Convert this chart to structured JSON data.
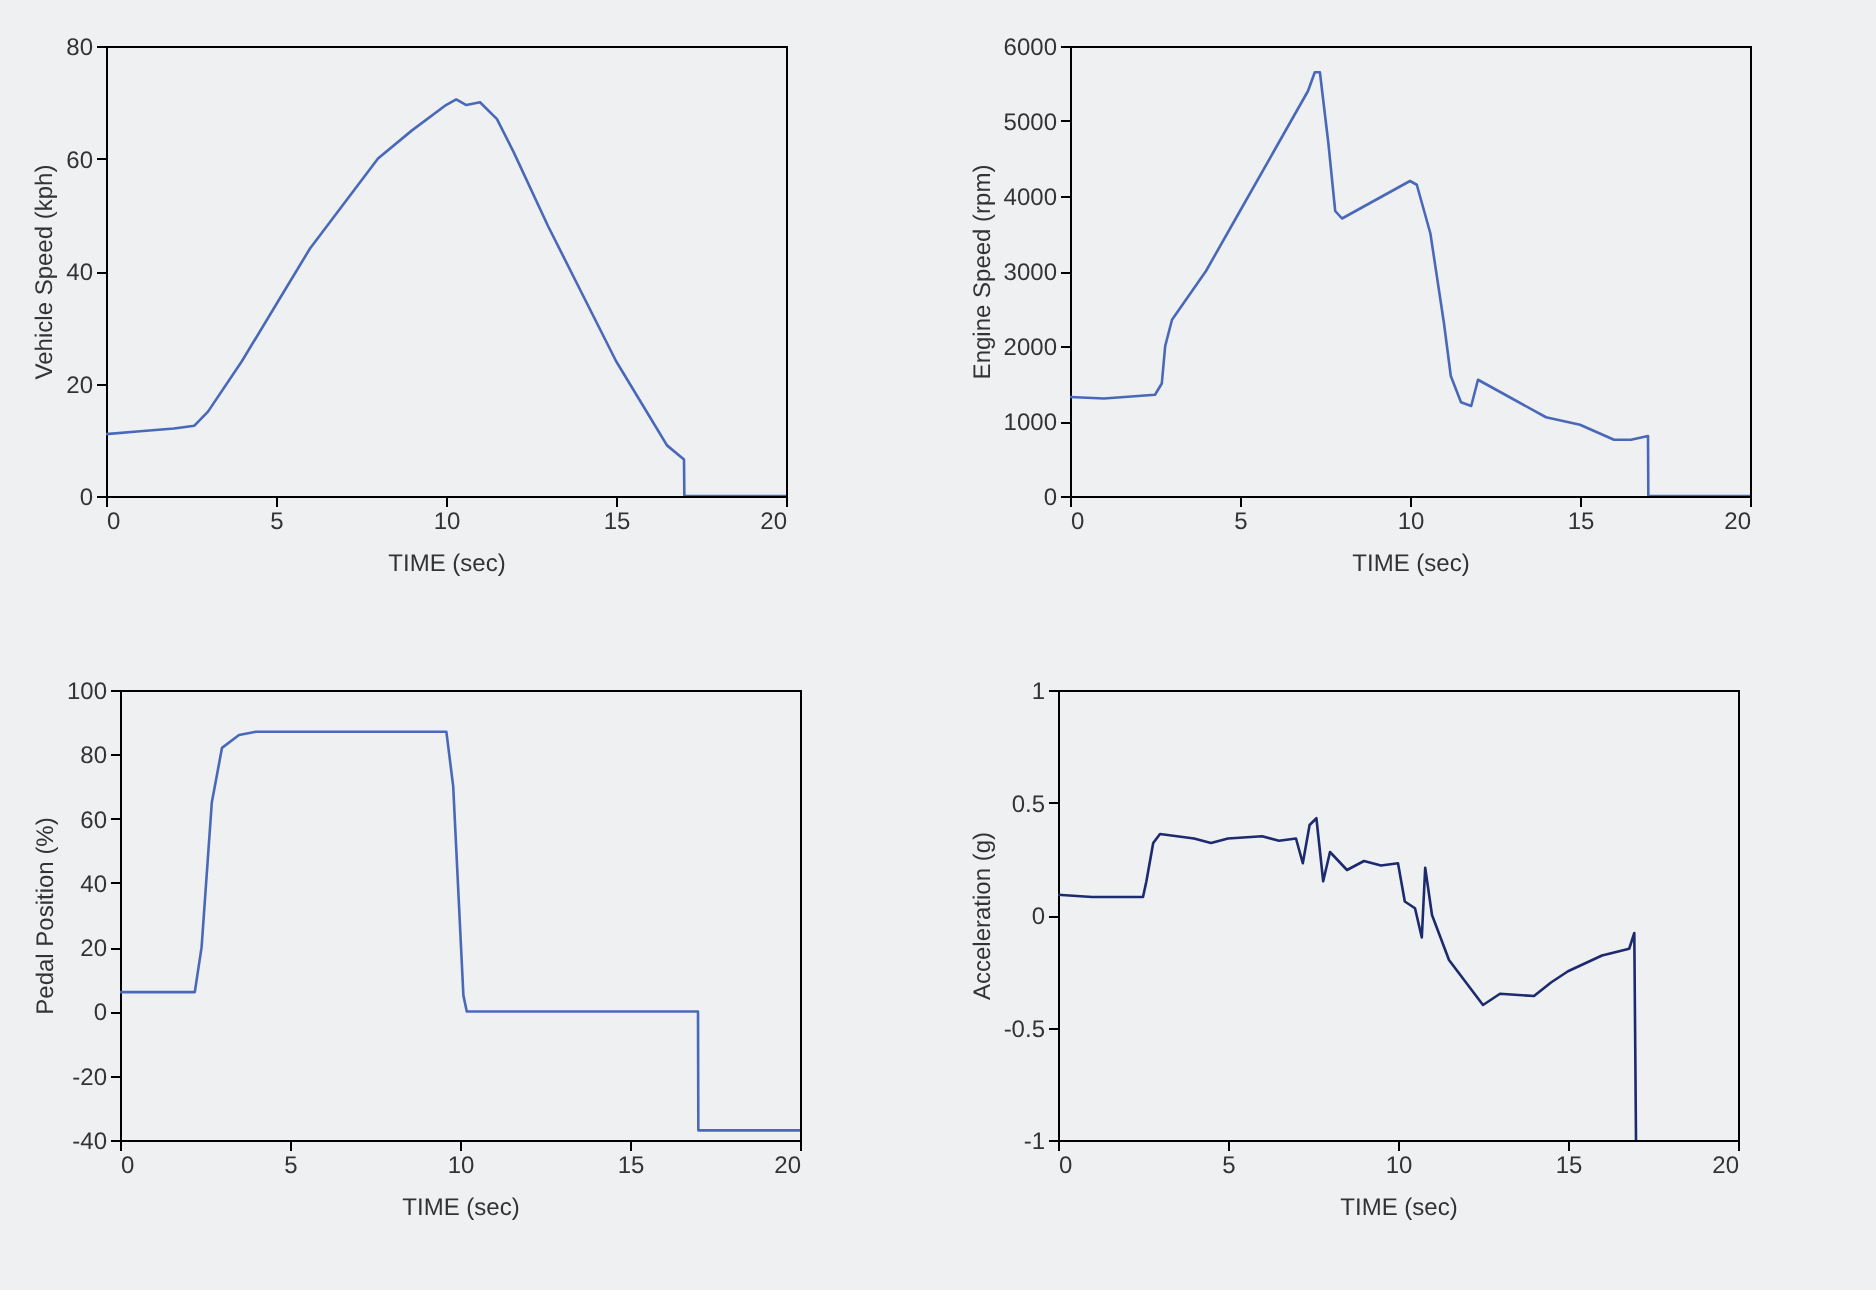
{
  "chart_data": [
    {
      "type": "line",
      "xlabel": "TIME (sec)",
      "ylabel": "Vehicle Speed (kph)",
      "xlim": [
        0,
        20
      ],
      "ylim": [
        0,
        80
      ],
      "xticks": [
        0,
        5,
        10,
        15,
        20
      ],
      "yticks": [
        0,
        20,
        40,
        60,
        80
      ],
      "x": [
        0,
        1,
        2,
        2.6,
        3,
        4,
        5,
        6,
        7,
        8,
        9,
        10,
        10.3,
        10.6,
        11,
        11.5,
        12,
        13,
        14,
        15,
        16,
        16.5,
        17,
        17.01,
        20
      ],
      "series": [
        {
          "color": "#4a68b8",
          "values": [
            11,
            11.5,
            12,
            12.5,
            15,
            24,
            34,
            44,
            52,
            60,
            65,
            69.5,
            70.5,
            69.5,
            70,
            67,
            61,
            48,
            36,
            24,
            14,
            9,
            6.5,
            0,
            0
          ]
        }
      ]
    },
    {
      "type": "line",
      "xlabel": "TIME (sec)",
      "ylabel": "Engine Speed (rpm)",
      "xlim": [
        0,
        20
      ],
      "ylim": [
        0,
        6000
      ],
      "xticks": [
        0,
        5,
        10,
        15,
        20
      ],
      "yticks": [
        0,
        1000,
        2000,
        3000,
        4000,
        5000,
        6000
      ],
      "x": [
        0,
        1,
        2.5,
        2.7,
        2.8,
        3,
        4,
        5,
        6,
        7,
        7.2,
        7.35,
        7.6,
        7.8,
        8,
        9,
        10,
        10.2,
        10.6,
        11,
        11.2,
        11.5,
        11.8,
        12,
        13,
        14,
        15,
        15.5,
        16,
        16.5,
        17,
        17.01,
        20
      ],
      "series": [
        {
          "color": "#4a68b8",
          "values": [
            1320,
            1300,
            1350,
            1500,
            2000,
            2350,
            3000,
            3800,
            4600,
            5400,
            5650,
            5650,
            4700,
            3800,
            3700,
            3950,
            4200,
            4150,
            3500,
            2300,
            1600,
            1250,
            1200,
            1550,
            1300,
            1050,
            950,
            850,
            750,
            750,
            800,
            0,
            0
          ]
        }
      ]
    },
    {
      "type": "line",
      "xlabel": "TIME (sec)",
      "ylabel": "Pedal Position (%)",
      "xlim": [
        0,
        20
      ],
      "ylim": [
        -40,
        100
      ],
      "xticks": [
        0,
        5,
        10,
        15,
        20
      ],
      "yticks": [
        -40,
        -20,
        0,
        20,
        40,
        60,
        80,
        100
      ],
      "x": [
        0,
        2.2,
        2.4,
        2.7,
        3,
        3.5,
        4,
        9.6,
        9.8,
        10.1,
        10.2,
        17,
        17.01,
        20
      ],
      "series": [
        {
          "color": "#4a68b8",
          "values": [
            6,
            6,
            20,
            65,
            82,
            86,
            87,
            87,
            70,
            5,
            0,
            0,
            -37,
            -37
          ]
        }
      ]
    },
    {
      "type": "line",
      "xlabel": "TIME (sec)",
      "ylabel": "Acceleration (g)",
      "xlim": [
        0,
        20
      ],
      "ylim": [
        -1,
        1
      ],
      "xticks": [
        0,
        5,
        10,
        15,
        20
      ],
      "yticks": [
        -1,
        -0.5,
        0,
        0.5,
        1
      ],
      "x": [
        0,
        1,
        2,
        2.5,
        2.6,
        2.8,
        3,
        4,
        4.5,
        5,
        6,
        6.5,
        7,
        7.2,
        7.4,
        7.6,
        7.8,
        8,
        8.5,
        9,
        9.5,
        10,
        10.2,
        10.5,
        10.7,
        10.8,
        11,
        11.5,
        12,
        12.5,
        13,
        14,
        14.5,
        15,
        16,
        16.8,
        16.95,
        17
      ],
      "series": [
        {
          "color": "#1c2a6e",
          "values": [
            0.09,
            0.08,
            0.08,
            0.08,
            0.15,
            0.32,
            0.36,
            0.34,
            0.32,
            0.34,
            0.35,
            0.33,
            0.34,
            0.23,
            0.4,
            0.43,
            0.15,
            0.28,
            0.2,
            0.24,
            0.22,
            0.23,
            0.06,
            0.03,
            -0.1,
            0.21,
            0,
            -0.2,
            -0.3,
            -0.4,
            -0.35,
            -0.36,
            -0.3,
            -0.25,
            -0.18,
            -0.15,
            -0.08,
            -1
          ]
        }
      ]
    }
  ]
}
